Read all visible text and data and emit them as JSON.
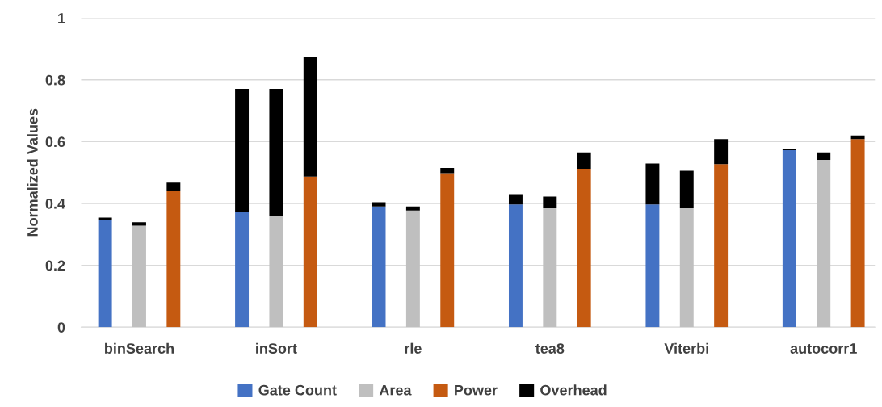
{
  "chart_data": {
    "type": "bar",
    "stacked": true,
    "ylabel": "Normalized Values",
    "categories": [
      null,
      "binSearch",
      null,
      null,
      null,
      "inSort",
      null,
      null,
      null,
      "rle",
      null,
      null,
      null,
      "tea8",
      null,
      null,
      null,
      "Viterbi",
      null,
      null,
      null,
      "autocorr1",
      null
    ],
    "series": [
      {
        "name": "Gate Count",
        "color": "#4472c4",
        "values": [
          0.345,
          null,
          null,
          null,
          0.373,
          null,
          null,
          null,
          0.39,
          null,
          null,
          null,
          0.397,
          null,
          null,
          null,
          0.397,
          null,
          null,
          null,
          0.572,
          null,
          null
        ]
      },
      {
        "name": "Area",
        "color": "#bfbfbf",
        "values": [
          null,
          0.328,
          null,
          null,
          null,
          0.359,
          null,
          null,
          null,
          0.377,
          null,
          null,
          null,
          0.385,
          null,
          null,
          null,
          0.385,
          null,
          null,
          null,
          0.541,
          null
        ]
      },
      {
        "name": "Power",
        "color": "#c55a11",
        "values": [
          null,
          null,
          0.442,
          null,
          null,
          null,
          0.487,
          null,
          null,
          null,
          0.498,
          null,
          null,
          null,
          0.512,
          null,
          null,
          null,
          0.527,
          null,
          null,
          null,
          0.608
        ]
      },
      {
        "name": "Overhead",
        "color": "#000000",
        "values": [
          0.009,
          0.011,
          0.028,
          null,
          0.398,
          0.412,
          0.386,
          null,
          0.014,
          0.013,
          0.017,
          null,
          0.033,
          0.037,
          0.053,
          null,
          0.132,
          0.121,
          0.081,
          null,
          0.005,
          0.024,
          0.012
        ]
      }
    ],
    "ylim": [
      0,
      1
    ],
    "yticks": [
      0,
      0.2,
      0.4,
      0.6,
      0.8,
      1
    ],
    "grid": "y",
    "legend": "bottom"
  }
}
